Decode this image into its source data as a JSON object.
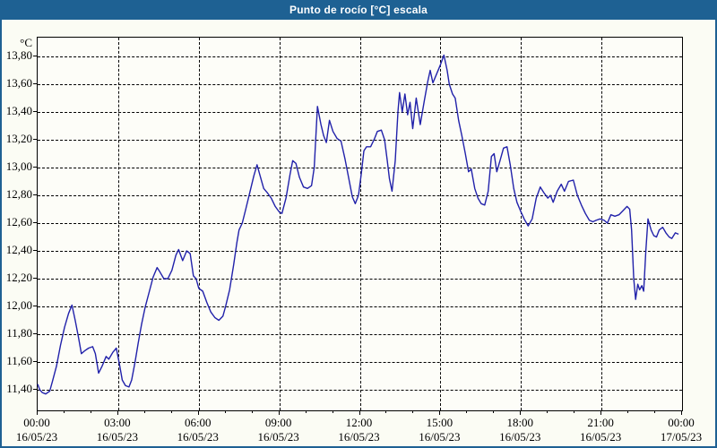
{
  "window": {
    "title": "Punto de rocío [°C] escala"
  },
  "colors": {
    "titlebar_bg": "#1e6193",
    "window_border": "#1e6193",
    "content_bg": "#fbfcf4",
    "plot_bg": "#fdfdf8",
    "grid": "#000000",
    "text": "#000000",
    "title_text": "#ffffff",
    "line": "#2121aa"
  },
  "chart_data": {
    "type": "line",
    "title": "Punto de rocío [°C] escala",
    "y_unit": "°C",
    "ylim": [
      11.4,
      13.8
    ],
    "xlim_hours": [
      0,
      24
    ],
    "grid": "dashed",
    "legend": "none",
    "yticks": [
      {
        "value": 13.8,
        "label": "13,80"
      },
      {
        "value": 13.6,
        "label": "13,60"
      },
      {
        "value": 13.4,
        "label": "13,40"
      },
      {
        "value": 13.2,
        "label": "13,20"
      },
      {
        "value": 13.0,
        "label": "13,00"
      },
      {
        "value": 12.8,
        "label": "12,80"
      },
      {
        "value": 12.6,
        "label": "12,60"
      },
      {
        "value": 12.4,
        "label": "12,40"
      },
      {
        "value": 12.2,
        "label": "12,20"
      },
      {
        "value": 12.0,
        "label": "12,00"
      },
      {
        "value": 11.8,
        "label": "11,80"
      },
      {
        "value": 11.6,
        "label": "11,60"
      },
      {
        "value": 11.4,
        "label": "11,40"
      }
    ],
    "xticks": [
      {
        "hour": 0,
        "time": "00:00",
        "date": "16/05/23"
      },
      {
        "hour": 3,
        "time": "03:00",
        "date": "16/05/23"
      },
      {
        "hour": 6,
        "time": "06:00",
        "date": "16/05/23"
      },
      {
        "hour": 9,
        "time": "09:00",
        "date": "16/05/23"
      },
      {
        "hour": 12,
        "time": "12:00",
        "date": "16/05/23"
      },
      {
        "hour": 15,
        "time": "15:00",
        "date": "16/05/23"
      },
      {
        "hour": 18,
        "time": "18:00",
        "date": "16/05/23"
      },
      {
        "hour": 21,
        "time": "21:00",
        "date": "16/05/23"
      },
      {
        "hour": 24,
        "time": "00:00",
        "date": "17/05/23"
      }
    ],
    "minor_xtick_every_hours": 1,
    "series": [
      {
        "name": "Punto de rocío",
        "color": "#2121aa",
        "points": [
          [
            0.0,
            11.44
          ],
          [
            0.08,
            11.4
          ],
          [
            0.17,
            11.38
          ],
          [
            0.3,
            11.37
          ],
          [
            0.45,
            11.39
          ],
          [
            0.55,
            11.46
          ],
          [
            0.7,
            11.57
          ],
          [
            0.85,
            11.72
          ],
          [
            1.0,
            11.85
          ],
          [
            1.15,
            11.95
          ],
          [
            1.28,
            12.01
          ],
          [
            1.4,
            11.9
          ],
          [
            1.52,
            11.78
          ],
          [
            1.63,
            11.66
          ],
          [
            1.75,
            11.68
          ],
          [
            1.9,
            11.7
          ],
          [
            2.05,
            11.71
          ],
          [
            2.15,
            11.66
          ],
          [
            2.27,
            11.52
          ],
          [
            2.4,
            11.57
          ],
          [
            2.55,
            11.64
          ],
          [
            2.65,
            11.62
          ],
          [
            2.8,
            11.67
          ],
          [
            2.93,
            11.7
          ],
          [
            3.05,
            11.58
          ],
          [
            3.15,
            11.47
          ],
          [
            3.27,
            11.43
          ],
          [
            3.4,
            11.42
          ],
          [
            3.5,
            11.47
          ],
          [
            3.63,
            11.6
          ],
          [
            3.75,
            11.74
          ],
          [
            3.87,
            11.87
          ],
          [
            4.0,
            11.99
          ],
          [
            4.15,
            12.1
          ],
          [
            4.3,
            12.21
          ],
          [
            4.45,
            12.28
          ],
          [
            4.55,
            12.25
          ],
          [
            4.7,
            12.2
          ],
          [
            4.85,
            12.2
          ],
          [
            5.0,
            12.26
          ],
          [
            5.15,
            12.37
          ],
          [
            5.25,
            12.41
          ],
          [
            5.4,
            12.33
          ],
          [
            5.55,
            12.4
          ],
          [
            5.68,
            12.38
          ],
          [
            5.8,
            12.22
          ],
          [
            5.9,
            12.2
          ],
          [
            6.0,
            12.13
          ],
          [
            6.15,
            12.11
          ],
          [
            6.3,
            12.03
          ],
          [
            6.45,
            11.96
          ],
          [
            6.6,
            11.92
          ],
          [
            6.75,
            11.9
          ],
          [
            6.9,
            11.93
          ],
          [
            7.0,
            12.0
          ],
          [
            7.15,
            12.12
          ],
          [
            7.3,
            12.3
          ],
          [
            7.42,
            12.46
          ],
          [
            7.5,
            12.55
          ],
          [
            7.62,
            12.6
          ],
          [
            7.75,
            12.7
          ],
          [
            7.9,
            12.82
          ],
          [
            8.05,
            12.94
          ],
          [
            8.17,
            13.02
          ],
          [
            8.3,
            12.93
          ],
          [
            8.42,
            12.85
          ],
          [
            8.55,
            12.82
          ],
          [
            8.7,
            12.78
          ],
          [
            8.85,
            12.72
          ],
          [
            9.0,
            12.68
          ],
          [
            9.1,
            12.67
          ],
          [
            9.25,
            12.78
          ],
          [
            9.4,
            12.95
          ],
          [
            9.5,
            13.05
          ],
          [
            9.62,
            13.03
          ],
          [
            9.75,
            12.93
          ],
          [
            9.9,
            12.86
          ],
          [
            10.05,
            12.85
          ],
          [
            10.2,
            12.87
          ],
          [
            10.3,
            13.0
          ],
          [
            10.42,
            13.44
          ],
          [
            10.55,
            13.31
          ],
          [
            10.65,
            13.23
          ],
          [
            10.75,
            13.18
          ],
          [
            10.87,
            13.34
          ],
          [
            11.0,
            13.26
          ],
          [
            11.15,
            13.21
          ],
          [
            11.3,
            13.19
          ],
          [
            11.45,
            13.06
          ],
          [
            11.6,
            12.91
          ],
          [
            11.72,
            12.79
          ],
          [
            11.83,
            12.74
          ],
          [
            11.95,
            12.8
          ],
          [
            12.05,
            12.95
          ],
          [
            12.15,
            13.12
          ],
          [
            12.25,
            13.15
          ],
          [
            12.4,
            13.15
          ],
          [
            12.55,
            13.21
          ],
          [
            12.65,
            13.26
          ],
          [
            12.8,
            13.27
          ],
          [
            12.92,
            13.2
          ],
          [
            13.02,
            13.05
          ],
          [
            13.1,
            12.92
          ],
          [
            13.2,
            12.83
          ],
          [
            13.32,
            13.05
          ],
          [
            13.42,
            13.4
          ],
          [
            13.48,
            13.54
          ],
          [
            13.58,
            13.4
          ],
          [
            13.68,
            13.53
          ],
          [
            13.78,
            13.38
          ],
          [
            13.87,
            13.47
          ],
          [
            13.97,
            13.28
          ],
          [
            14.1,
            13.5
          ],
          [
            14.25,
            13.31
          ],
          [
            14.4,
            13.48
          ],
          [
            14.53,
            13.62
          ],
          [
            14.62,
            13.7
          ],
          [
            14.72,
            13.61
          ],
          [
            14.85,
            13.67
          ],
          [
            15.0,
            13.74
          ],
          [
            15.13,
            13.81
          ],
          [
            15.25,
            13.7
          ],
          [
            15.33,
            13.6
          ],
          [
            15.45,
            13.53
          ],
          [
            15.55,
            13.5
          ],
          [
            15.68,
            13.34
          ],
          [
            15.8,
            13.23
          ],
          [
            15.93,
            13.1
          ],
          [
            16.05,
            12.97
          ],
          [
            16.15,
            12.99
          ],
          [
            16.28,
            12.85
          ],
          [
            16.4,
            12.78
          ],
          [
            16.52,
            12.74
          ],
          [
            16.65,
            12.73
          ],
          [
            16.78,
            12.83
          ],
          [
            16.9,
            13.08
          ],
          [
            17.0,
            13.1
          ],
          [
            17.1,
            12.97
          ],
          [
            17.22,
            13.05
          ],
          [
            17.35,
            13.14
          ],
          [
            17.48,
            13.15
          ],
          [
            17.6,
            13.02
          ],
          [
            17.73,
            12.85
          ],
          [
            17.85,
            12.75
          ],
          [
            18.0,
            12.68
          ],
          [
            18.12,
            12.63
          ],
          [
            18.27,
            12.58
          ],
          [
            18.42,
            12.63
          ],
          [
            18.57,
            12.78
          ],
          [
            18.72,
            12.86
          ],
          [
            18.85,
            12.82
          ],
          [
            19.0,
            12.78
          ],
          [
            19.1,
            12.8
          ],
          [
            19.2,
            12.75
          ],
          [
            19.35,
            12.83
          ],
          [
            19.5,
            12.88
          ],
          [
            19.62,
            12.83
          ],
          [
            19.77,
            12.9
          ],
          [
            19.95,
            12.91
          ],
          [
            20.1,
            12.8
          ],
          [
            20.25,
            12.73
          ],
          [
            20.4,
            12.67
          ],
          [
            20.55,
            12.62
          ],
          [
            20.68,
            12.61
          ],
          [
            20.8,
            12.62
          ],
          [
            20.95,
            12.63
          ],
          [
            21.1,
            12.62
          ],
          [
            21.22,
            12.6
          ],
          [
            21.35,
            12.66
          ],
          [
            21.5,
            12.65
          ],
          [
            21.65,
            12.66
          ],
          [
            21.8,
            12.69
          ],
          [
            21.95,
            12.72
          ],
          [
            22.05,
            12.7
          ],
          [
            22.12,
            12.55
          ],
          [
            22.2,
            12.2
          ],
          [
            22.27,
            12.05
          ],
          [
            22.35,
            12.16
          ],
          [
            22.42,
            12.12
          ],
          [
            22.5,
            12.15
          ],
          [
            22.57,
            12.11
          ],
          [
            22.65,
            12.4
          ],
          [
            22.73,
            12.63
          ],
          [
            22.85,
            12.55
          ],
          [
            22.95,
            12.51
          ],
          [
            23.05,
            12.5
          ],
          [
            23.15,
            12.55
          ],
          [
            23.28,
            12.57
          ],
          [
            23.4,
            12.53
          ],
          [
            23.52,
            12.5
          ],
          [
            23.62,
            12.49
          ],
          [
            23.75,
            12.53
          ],
          [
            23.87,
            12.52
          ]
        ]
      }
    ]
  }
}
